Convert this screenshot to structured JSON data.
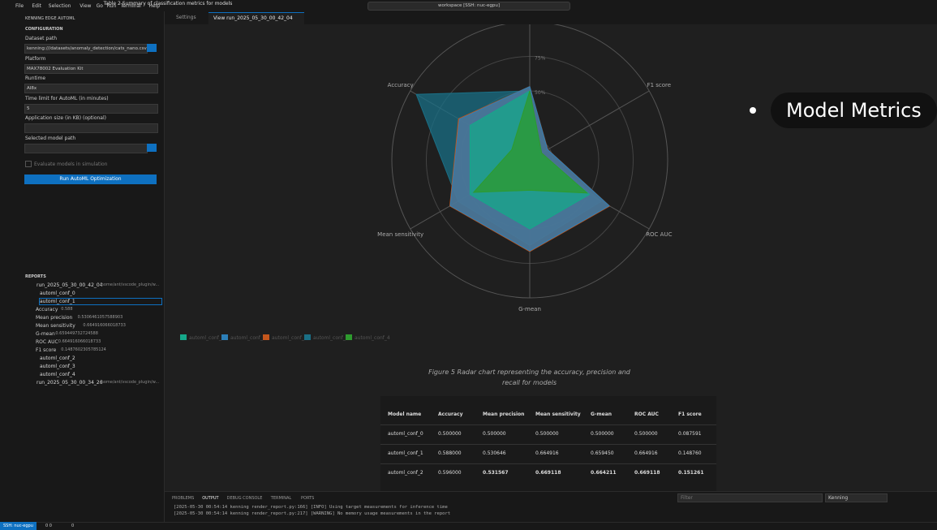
{
  "menu": [
    "File",
    "Edit",
    "Selection",
    "View",
    "Go",
    "Run",
    "Terminal",
    "Help"
  ],
  "command_center": "workspace [SSH: nuc-egpu]",
  "sidebar": {
    "title": "KENNING EDGE AUTOML",
    "configuration": {
      "title": "CONFIGURATION",
      "fields": [
        {
          "label": "Dataset path",
          "value": "kenning:///datasets/anomaly_detection/cats_nano.csv"
        },
        {
          "label": "Platform",
          "value": "MAX78002 Evaluation Kit"
        },
        {
          "label": "Runtime",
          "value": "AI8x"
        },
        {
          "label": "Time limit for AutoML (in minutes)",
          "value": "5"
        },
        {
          "label": "Application size (in KB) (optional)"
        },
        {
          "label": "Selected model path"
        }
      ],
      "checkbox": "Evaluate models in simulation",
      "button": "Run AutoML Optimization"
    },
    "reports": {
      "title": "REPORTS",
      "runs": [
        {
          "name": "run_2025_05_30_00_42_04",
          "path": "/home/ant/vscode_plugin/w...",
          "items": [
            {
              "name": "automl_conf_0"
            },
            {
              "name": "automl_conf_1",
              "metrics": [
                {
                  "label": "Accuracy",
                  "value": "0.588"
                },
                {
                  "label": "Mean precision",
                  "value": "0.5306461057588903"
                },
                {
                  "label": "Mean sensitivity",
                  "value": "0.664916066018733"
                },
                {
                  "label": "G-mean",
                  "value": "0.659449732724588"
                },
                {
                  "label": "ROC AUC",
                  "value": "0.664916066018733"
                },
                {
                  "label": "F1 score",
                  "value": "0.1487602305785124"
                }
              ]
            },
            {
              "name": "automl_conf_2"
            },
            {
              "name": "automl_conf_3"
            },
            {
              "name": "automl_conf_4"
            }
          ]
        },
        {
          "name": "run_2025_05_30_00_34_26",
          "path": "/home/ant/vscode_plugin/w..."
        }
      ]
    }
  },
  "tabs": [
    "Settings",
    "View run_2025_05_30_00_42_04"
  ],
  "radar": {
    "axes": [
      null,
      "F1 score",
      "ROC AUC",
      "G-mean",
      "Mean sensitivity",
      "Accuracy"
    ],
    "rlim": [
      0,
      100
    ],
    "rticks": [
      {
        "value": 50,
        "label": "50%"
      },
      {
        "value": 75,
        "label": "75%"
      }
    ],
    "series": [
      {
        "name": "automl_conf_3",
        "color": "#1a6f85",
        "values": [
          50,
          10,
          60,
          62,
          60,
          95
        ]
      },
      {
        "name": "automl_conf_2",
        "color": "#c4561c",
        "values": [
          53.2,
          15.1,
          66.9,
          66.4,
          66.9,
          59.6
        ]
      },
      {
        "name": "automl_conf_1",
        "color": "#2c7fb8",
        "values": [
          53.1,
          14.9,
          66.5,
          65.9,
          66.5,
          58.8
        ]
      },
      {
        "name": "automl_conf_0",
        "color": "#15a88a",
        "values": [
          50,
          8.8,
          50,
          50,
          50,
          50
        ]
      },
      {
        "name": "automl_conf_4",
        "color": "#2e9a2e",
        "values": [
          50,
          10,
          48,
          22,
          47,
          15
        ]
      }
    ]
  },
  "overlay": "Model Metrics",
  "figure_caption": "Figure 5 Radar chart representing the accuracy, precision and recall for models",
  "table": {
    "caption": "Table 2 Summary of classification metrics for models",
    "header": [
      "Model name",
      "Accuracy",
      "Mean precision",
      "Mean sensitivity",
      "G-mean",
      "ROC AUC",
      "F1 score"
    ],
    "rows": [
      [
        "automl_conf_0",
        "0.500000",
        "0.500000",
        "0.500000",
        "0.500000",
        "0.500000",
        "0.087591"
      ],
      [
        "automl_conf_1",
        "0.588000",
        "0.530646",
        "0.664916",
        "0.659450",
        "0.664916",
        "0.148760"
      ],
      [
        "automl_conf_2",
        "0.596000",
        "0.531567",
        "0.669118",
        "0.664211",
        "0.669118",
        "0.151261"
      ]
    ]
  },
  "panel": {
    "tabs": [
      "PROBLEMS",
      "OUTPUT",
      "DEBUG CONSOLE",
      "TERMINAL",
      "PORTS"
    ],
    "filter": "Filter",
    "channel": "Kenning",
    "log": [
      "[2025-05-30 00:54:14 kenning render_report.py:166] [INFO] Using target measurements for inference time",
      "[2025-05-30 00:54:14 kenning render_report.py:217] [WARNING] No memory usage measurements in the report"
    ]
  },
  "status": {
    "remote": "SSH: nuc-egpu",
    "problems": "0 0",
    "ports": "0"
  }
}
